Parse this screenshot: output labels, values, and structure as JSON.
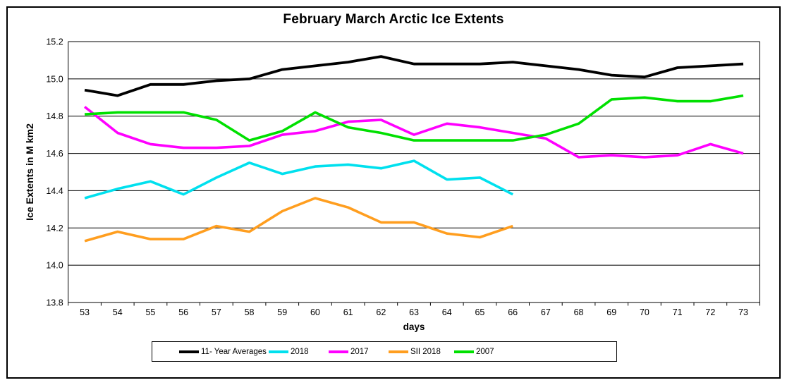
{
  "chart_data": {
    "type": "line",
    "title": "February March Arctic Ice Extents",
    "xlabel": "days",
    "ylabel": "Ice Extents in M km2",
    "x": [
      53,
      54,
      55,
      56,
      57,
      58,
      59,
      60,
      61,
      62,
      63,
      64,
      65,
      66,
      67,
      68,
      69,
      70,
      71,
      72,
      73
    ],
    "ylim": [
      13.8,
      15.2
    ],
    "ytick_step": 0.2,
    "grid": "horizontal",
    "legend_position": "bottom",
    "series": [
      {
        "name": "11- Year Averages",
        "color": "#000000",
        "values": [
          14.94,
          14.91,
          14.97,
          14.97,
          14.99,
          15.0,
          15.05,
          15.07,
          15.09,
          15.12,
          15.08,
          15.08,
          15.08,
          15.09,
          15.07,
          15.05,
          15.02,
          15.01,
          15.06,
          15.07,
          15.08
        ]
      },
      {
        "name": "2018",
        "color": "#00E0EE",
        "values": [
          14.36,
          14.41,
          14.45,
          14.38,
          14.47,
          14.55,
          14.49,
          14.53,
          14.54,
          14.52,
          14.56,
          14.46,
          14.47,
          14.38,
          null,
          null,
          null,
          null,
          null,
          null,
          null
        ]
      },
      {
        "name": "2017",
        "color": "#FF00FF",
        "values": [
          14.85,
          14.71,
          14.65,
          14.63,
          14.63,
          14.64,
          14.7,
          14.72,
          14.77,
          14.78,
          14.7,
          14.76,
          14.74,
          14.71,
          14.68,
          14.58,
          14.59,
          14.58,
          14.59,
          14.65,
          14.6
        ]
      },
      {
        "name": "SII 2018",
        "color": "#FF9E1F",
        "values": [
          14.13,
          14.18,
          14.14,
          14.14,
          14.21,
          14.18,
          14.29,
          14.36,
          14.31,
          14.23,
          14.23,
          14.17,
          14.15,
          14.21,
          null,
          null,
          null,
          null,
          null,
          null,
          null
        ]
      },
      {
        "name": "2007",
        "color": "#00E000",
        "values": [
          14.81,
          14.82,
          14.82,
          14.82,
          14.78,
          14.67,
          14.72,
          14.82,
          14.74,
          14.71,
          14.67,
          14.67,
          14.67,
          14.67,
          14.7,
          14.76,
          14.89,
          14.9,
          14.88,
          14.88,
          14.91
        ]
      }
    ]
  }
}
